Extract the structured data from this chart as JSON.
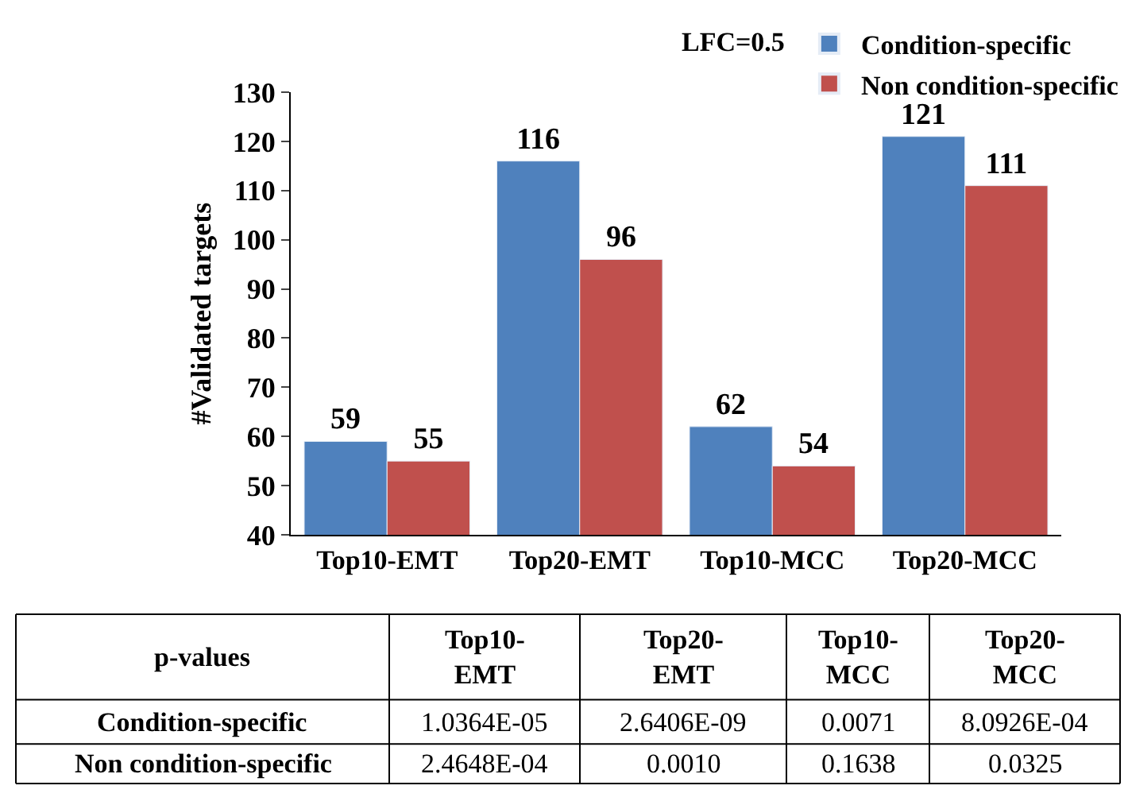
{
  "chart_data": {
    "type": "bar",
    "ylabel": "#Validated targets",
    "legend_title": "LFC=0.5",
    "categories": [
      "Top10-EMT",
      "Top20-EMT",
      "Top10-MCC",
      "Top20-MCC"
    ],
    "series": [
      {
        "name": "Condition-specific",
        "color": "#4f81bd",
        "values": [
          59,
          116,
          62,
          121
        ]
      },
      {
        "name": "Non condition-specific",
        "color": "#c0504d",
        "values": [
          55,
          96,
          54,
          111
        ]
      }
    ],
    "ylim": [
      40,
      130
    ],
    "yticks": [
      40,
      50,
      60,
      70,
      80,
      90,
      100,
      110,
      120,
      130
    ],
    "data_labels": true,
    "legend": "top right",
    "annotations": [
      "p-values",
      "Top10-EMT",
      "Top20-EMT",
      "Top10-MCC",
      "Top20-MCC",
      "Condition-specific",
      "1.0364E-05",
      "2.6406E-09",
      "0.0071",
      "8.0926E-04",
      "Non condition-specific",
      "2.4648E-04",
      "0.0010",
      "0.1638",
      "0.0325"
    ]
  }
}
